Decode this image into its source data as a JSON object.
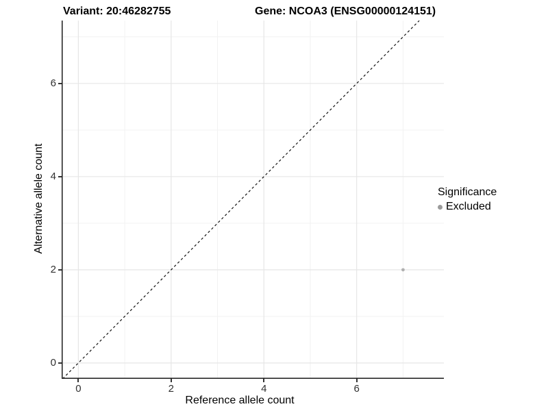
{
  "titles": {
    "left": "Variant: 20:46282755",
    "right": "Gene: NCOA3 (ENSG00000124151)"
  },
  "axes": {
    "x_label": "Reference allele count",
    "y_label": "Alternative allele count"
  },
  "legend": {
    "title": "Significance",
    "items": [
      {
        "label": "Excluded",
        "color": "#9b9b9b"
      }
    ]
  },
  "chart_data": {
    "type": "scatter",
    "title": "Variant: 20:46282755 — Gene: NCOA3 (ENSG00000124151)",
    "xlabel": "Reference allele count",
    "ylabel": "Alternative allele count",
    "x_ticks": [
      0,
      2,
      4,
      6
    ],
    "y_ticks": [
      0,
      2,
      4,
      6
    ],
    "x_minor_ticks": [
      1,
      3,
      5,
      7
    ],
    "y_minor_ticks": [
      1,
      3,
      5,
      7
    ],
    "xlim": [
      -0.36,
      7.88
    ],
    "ylim": [
      -0.34,
      7.35
    ],
    "points": [
      {
        "x": 7,
        "y": 2,
        "series": "Excluded",
        "color": "#b0b0b0",
        "radius": 2.4
      }
    ],
    "reference_line": {
      "type": "identity",
      "equation": "y = x",
      "style": "dashed",
      "color": "#111111"
    },
    "grid": {
      "major_color": "#e6e6e6",
      "minor_color": "#f2f2f2"
    },
    "axis_line_color": "#1a1a1a",
    "legend_position": "right",
    "background": "#ffffff"
  }
}
